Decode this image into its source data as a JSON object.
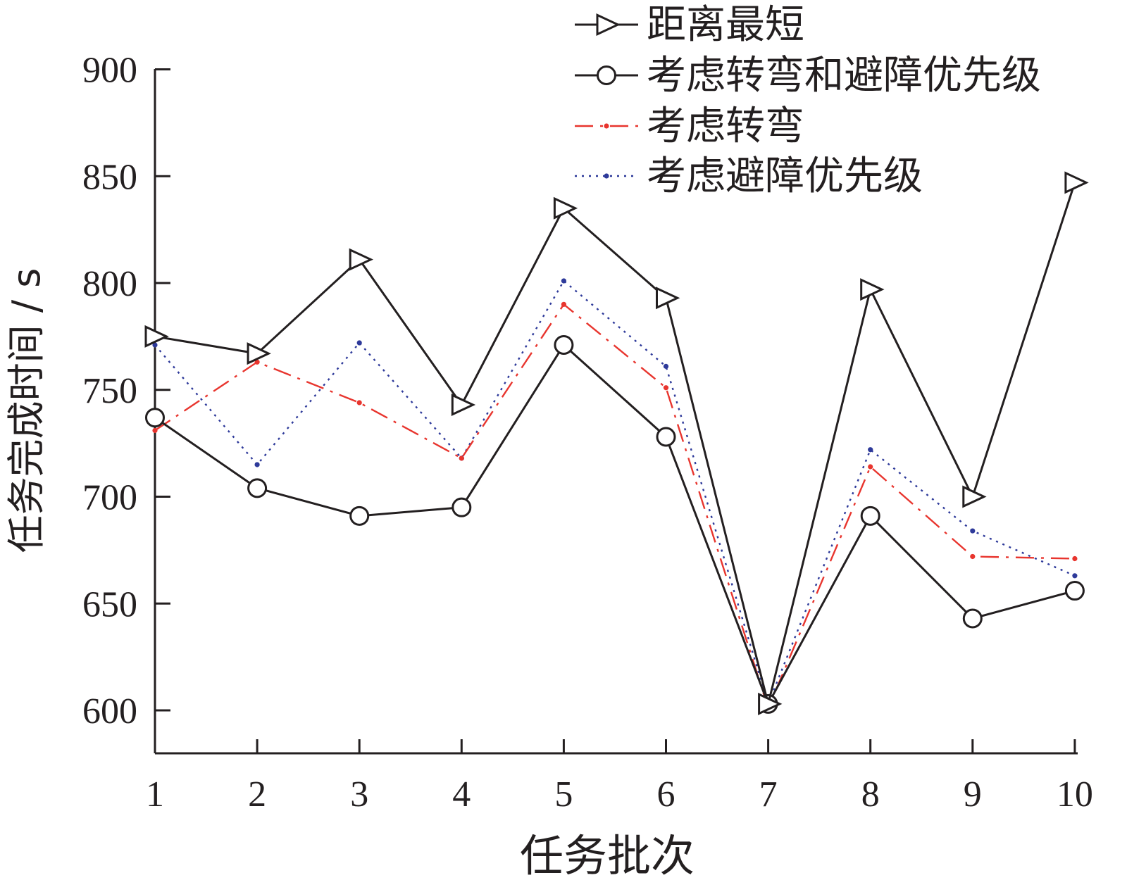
{
  "chart_data": {
    "type": "line",
    "title": "",
    "xlabel": "任务批次",
    "ylabel": "任务完成时间 / s",
    "x": [
      1,
      2,
      3,
      4,
      5,
      6,
      7,
      8,
      9,
      10
    ],
    "x_tick_labels": [
      "1",
      "2",
      "3",
      "4",
      "5",
      "6",
      "7",
      "8",
      "9",
      "10"
    ],
    "y_ticks": [
      600,
      650,
      700,
      750,
      800,
      850,
      900
    ],
    "y_tick_labels": [
      "600",
      "650",
      "700",
      "750",
      "800",
      "850",
      "900"
    ],
    "ylim": [
      580,
      900
    ],
    "xlim": [
      1,
      10
    ],
    "grid": false,
    "legend_position": "top-right",
    "series": [
      {
        "name": "距离最短",
        "color": "#231f20",
        "line_style": "solid",
        "marker": "triangle-right",
        "values": [
          775,
          767,
          811,
          743,
          835,
          793,
          603,
          797,
          700,
          847
        ]
      },
      {
        "name": "考虑转弯和避障优先级",
        "color": "#231f20",
        "line_style": "solid",
        "marker": "circle",
        "values": [
          737,
          704,
          691,
          695,
          771,
          728,
          603,
          691,
          643,
          656
        ]
      },
      {
        "name": "考虑转弯",
        "color": "#e8352e",
        "line_style": "dashdot",
        "marker": "dot",
        "values": [
          731,
          763,
          744,
          718,
          790,
          751,
          601,
          714,
          672,
          671
        ]
      },
      {
        "name": "考虑避障优先级",
        "color": "#2e3a9a",
        "line_style": "dotted",
        "marker": "dot",
        "values": [
          771,
          715,
          772,
          718,
          801,
          761,
          603,
          722,
          684,
          663
        ]
      }
    ]
  }
}
